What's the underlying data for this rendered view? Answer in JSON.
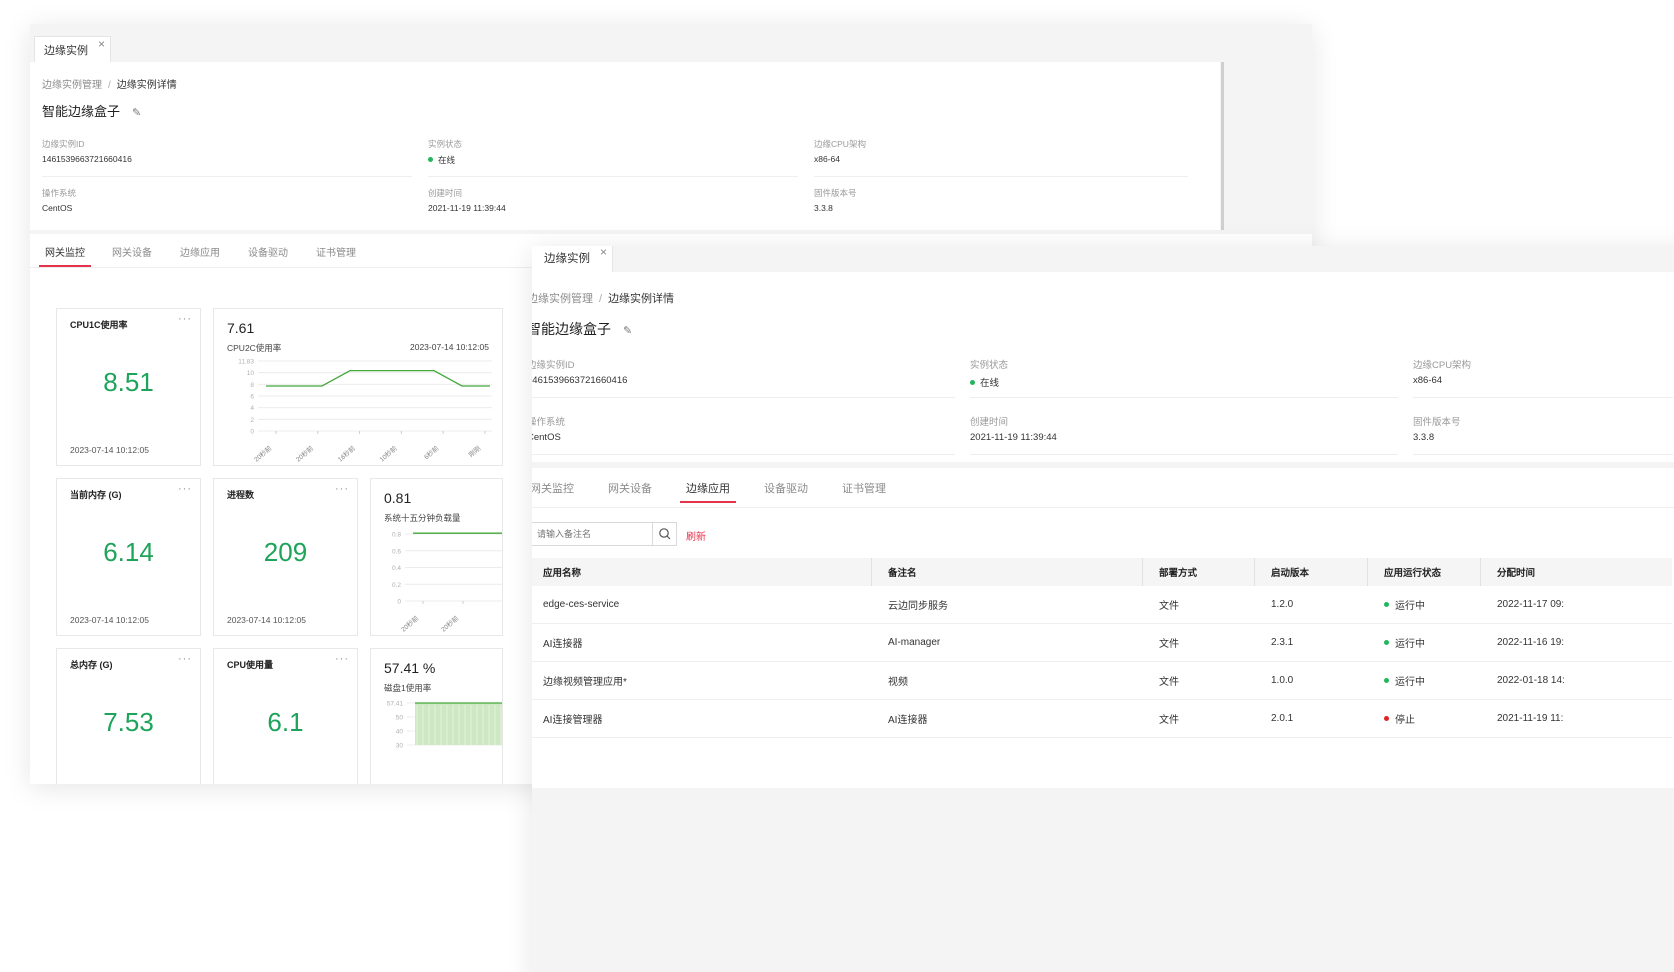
{
  "tab_label": "边缘实例",
  "tab_close": "×",
  "breadcrumb": {
    "parent": "边缘实例管理",
    "separator": "/",
    "current": "边缘实例详情"
  },
  "page_title": "智能边缘盒子",
  "edit_icon": "pencil-icon",
  "info": {
    "instance_id_label": "边缘实例ID",
    "instance_id": "1461539663721660416",
    "status_label": "实例状态",
    "status": "在线",
    "cpu_arch_label": "边缘CPU架构",
    "cpu_arch": "x86-64",
    "os_label": "操作系统",
    "os": "CentOS",
    "created_label": "创建时间",
    "created": "2021-11-19 11:39:44",
    "firmware_label": "固件版本号",
    "firmware": "3.3.8"
  },
  "nav_tabs": [
    "网关监控",
    "网关设备",
    "边缘应用",
    "设备驱动",
    "证书管理"
  ],
  "more_icon": "···",
  "colors": {
    "accent": "#e6334d",
    "metric_green": "#1ea35a",
    "line_green": "#42a83a",
    "online_dot": "#25b55c",
    "stopped_dot": "#e02424"
  },
  "metrics": [
    {
      "title": "CPU1C使用率",
      "value": "8.51",
      "time": "2023-07-14 10:12:05"
    },
    {
      "title": "当前内存 (G)",
      "value": "6.14",
      "time": "2023-07-14 10:12:05"
    },
    {
      "title": "进程数",
      "value": "209",
      "time": "2023-07-14 10:12:05"
    },
    {
      "title": "总内存 (G)",
      "value": "7.53"
    },
    {
      "title": "CPU使用量",
      "value": "6.1"
    }
  ],
  "chart_data": [
    {
      "type": "line",
      "value_text": "7.61",
      "name": "CPU2C使用率",
      "time": "2023-07-14 10:12:05",
      "y_ticks": [
        "11.83",
        "10",
        "8",
        "6",
        "4",
        "2",
        "0"
      ],
      "ylim": [
        0,
        11.83
      ],
      "x_ticks": [
        "20秒前",
        "20秒前",
        "16秒前",
        "10秒前",
        "6秒前",
        "刚刚"
      ],
      "x": [
        0,
        1,
        2,
        3,
        4,
        5,
        6,
        7,
        8
      ],
      "values": [
        7.61,
        7.61,
        7.61,
        10.2,
        10.2,
        10.2,
        10.2,
        7.61,
        7.61
      ]
    },
    {
      "type": "line",
      "value_text": "0.81",
      "name": "系统十五分钟负载量",
      "y_ticks": [
        "0.8",
        "0.6",
        "0.4",
        "0.2",
        "0"
      ],
      "ylim": [
        0,
        0.8
      ],
      "x_ticks": [
        "20秒前",
        "20秒前"
      ],
      "x": [
        0,
        1,
        2,
        3
      ],
      "values": [
        0.81,
        0.81,
        0.81,
        0.81
      ]
    },
    {
      "type": "area",
      "value_text": "57.41 %",
      "name": "磁盘1使用率",
      "y_ticks": [
        "57.41",
        "50",
        "40",
        "30"
      ],
      "ylim": [
        30,
        57.41
      ],
      "x": [
        0,
        1,
        2
      ],
      "values": [
        57.41,
        57.41,
        57.41
      ]
    }
  ],
  "search": {
    "placeholder": "请输入备注名",
    "icon": "search-icon"
  },
  "refresh_label": "刷新",
  "table": {
    "columns": [
      "应用名称",
      "备注名",
      "部署方式",
      "启动版本",
      "应用运行状态",
      "分配时间"
    ],
    "rows": [
      {
        "name": "edge-ces-service",
        "remark": "云边同步服务",
        "deploy": "文件",
        "version": "1.2.0",
        "status": "运行中",
        "status_kind": "running",
        "time": "2022-11-17 09:"
      },
      {
        "name": "AI连接器",
        "remark": "AI-manager",
        "deploy": "文件",
        "version": "2.3.1",
        "status": "运行中",
        "status_kind": "running",
        "time": "2022-11-16 19:"
      },
      {
        "name": "边缘视频管理应用*",
        "remark": "视频",
        "deploy": "文件",
        "version": "1.0.0",
        "status": "运行中",
        "status_kind": "running",
        "time": "2022-01-18 14:"
      },
      {
        "name": "AI连接管理器",
        "remark": "AI连接器",
        "deploy": "文件",
        "version": "2.0.1",
        "status": "停止",
        "status_kind": "stopped",
        "time": "2021-11-19 11:"
      }
    ]
  }
}
